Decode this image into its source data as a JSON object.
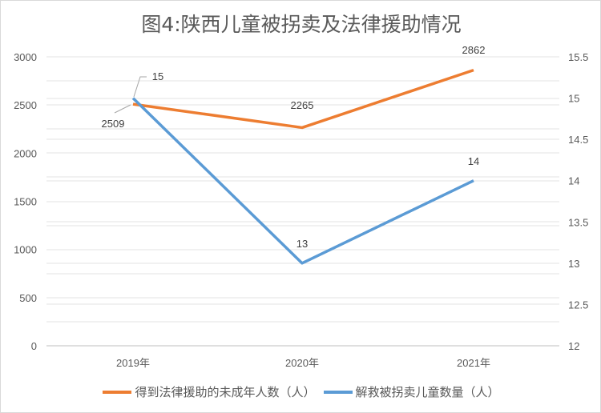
{
  "chart_data": {
    "type": "line",
    "title": "图4:陕西儿童被拐卖及法律援助情况",
    "categories": [
      "2019年",
      "2020年",
      "2021年"
    ],
    "series": [
      {
        "name": "得到法律援助的未成年人数（人）",
        "axis": "left",
        "color": "#ED7D31",
        "values": [
          2509,
          2265,
          2862
        ]
      },
      {
        "name": "解救被拐卖儿童数量（人）",
        "axis": "right",
        "color": "#5B9BD5",
        "values": [
          15,
          13,
          14
        ]
      }
    ],
    "left_axis": {
      "min": 0,
      "max": 3000,
      "step": 500,
      "ticks": [
        "0",
        "500",
        "1000",
        "1500",
        "2000",
        "2500",
        "3000"
      ]
    },
    "right_axis": {
      "min": 12,
      "max": 15.5,
      "step": 0.5,
      "ticks": [
        "12",
        "12.5",
        "13",
        "13.5",
        "14",
        "14.5",
        "15",
        "15.5"
      ]
    },
    "data_labels": [
      [
        "2509",
        "2265",
        "2862"
      ],
      [
        "15",
        "13",
        "14"
      ]
    ],
    "grid": true,
    "legend": "bottom"
  }
}
